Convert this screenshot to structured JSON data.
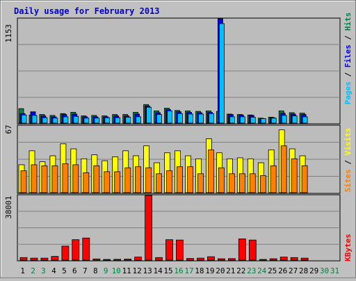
{
  "title": "Daily usage for February 2013",
  "colors": {
    "page_bg": "#c0c0c0",
    "plot_bg": "#bcbcbc",
    "title_text": "#0000cc",
    "hits": "#008040",
    "files": "#0000ff",
    "pages": "#00c0ff",
    "visits": "#ffff00",
    "sites": "#ff8000",
    "kbytes": "#ff0000",
    "weekend_day": "#008040",
    "weekday": "#000000"
  },
  "chart_data": {
    "type": "bar",
    "title": "Daily usage for February 2013",
    "categories": [
      "1",
      "2",
      "3",
      "4",
      "5",
      "6",
      "7",
      "8",
      "9",
      "10",
      "11",
      "12",
      "13",
      "14",
      "15",
      "16",
      "17",
      "18",
      "19",
      "20",
      "21",
      "22",
      "23",
      "24",
      "25",
      "26",
      "27",
      "28",
      "29",
      "30",
      "31"
    ],
    "weekend_days": [
      "2",
      "3",
      "9",
      "10",
      "16",
      "17",
      "23",
      "24",
      "30",
      "31"
    ],
    "panels": [
      {
        "name": "hits-files-pages",
        "y_max_label": "1153",
        "ylim": [
          0,
          1153
        ],
        "legend": {
          "pages": "Pages",
          "sep1": " / ",
          "files": "Files",
          "sep2": " / ",
          "hits": "Hits"
        },
        "series": [
          {
            "name": "Hits",
            "values": [
              160,
              90,
              95,
              85,
              105,
              120,
              80,
              85,
              80,
              95,
              95,
              120,
              205,
              135,
              165,
              140,
              135,
              130,
              135,
              130,
              100,
              95,
              90,
              55,
              65,
              135,
              115,
              110,
              0,
              0,
              0
            ]
          },
          {
            "name": "Files",
            "values": [
              105,
              125,
              80,
              70,
              95,
              100,
              70,
              70,
              70,
              80,
              80,
              100,
              190,
              115,
              150,
              125,
              120,
              115,
              120,
              1153,
              95,
              90,
              85,
              50,
              60,
              110,
              100,
              95,
              0,
              0,
              0
            ]
          },
          {
            "name": "Pages",
            "values": [
              90,
              85,
              60,
              55,
              70,
              75,
              55,
              55,
              60,
              60,
              65,
              70,
              175,
              95,
              135,
              105,
              100,
              100,
              105,
              1100,
              70,
              70,
              65,
              50,
              55,
              85,
              80,
              70,
              0,
              0,
              0
            ]
          }
        ]
      },
      {
        "name": "visits-sites",
        "y_max_label": "67",
        "ylim": [
          0,
          67
        ],
        "legend": {
          "sites": "Sites",
          "sep": " / ",
          "visits": "Visits"
        },
        "series": [
          {
            "name": "Visits",
            "values": [
              28,
              42,
              31,
              37,
              49,
              44,
              34,
              38,
              32,
              36,
              42,
              37,
              47,
              30,
              40,
              42,
              37,
              34,
              54,
              40,
              34,
              35,
              34,
              30,
              43,
              63,
              44,
              37,
              0,
              0,
              0
            ]
          },
          {
            "name": "Sites",
            "values": [
              22,
              28,
              27,
              27,
              29,
              28,
              20,
              27,
              21,
              21,
              25,
              26,
              25,
              19,
              22,
              26,
              26,
              19,
              43,
              25,
              19,
              19,
              19,
              17,
              27,
              47,
              34,
              27,
              0,
              0,
              0
            ]
          }
        ]
      },
      {
        "name": "kbytes",
        "y_max_label": "38001",
        "ylim": [
          0,
          38001
        ],
        "legend": {
          "kbytes": "KBytes"
        },
        "series": [
          {
            "name": "KBytes",
            "values": [
              1500,
              1200,
              1200,
              2200,
              8200,
              12000,
              13000,
              700,
              400,
              500,
              600,
              1800,
              38001,
              1500,
              12000,
              11800,
              1000,
              1200,
              2000,
              800,
              900,
              12500,
              11800,
              400,
              800,
              1800,
              1500,
              1200,
              0,
              0,
              0
            ]
          }
        ]
      }
    ]
  }
}
